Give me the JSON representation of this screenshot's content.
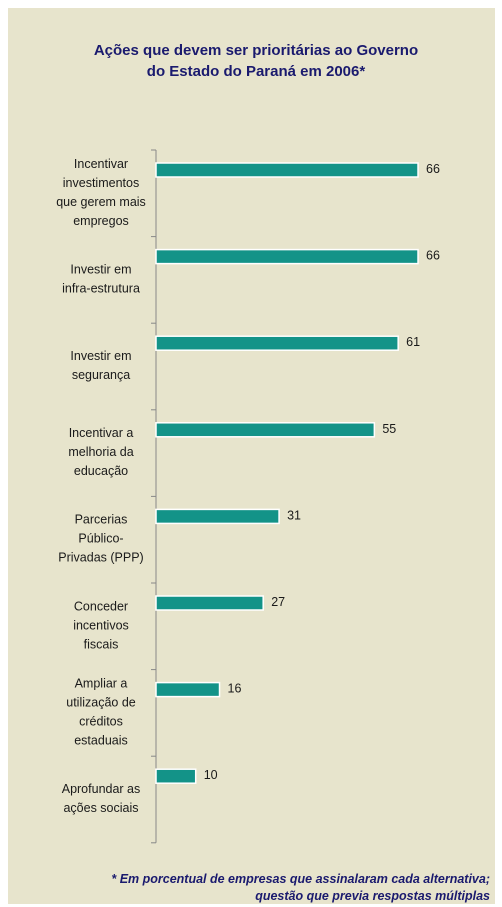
{
  "chart_data": {
    "type": "bar",
    "orientation": "horizontal",
    "title": "Ações que devem ser prioritárias ao Governo\ndo Estado do Paraná em 2006*",
    "categories": [
      "Incentivar\ninvestimentos\nque gerem mais\nempregos",
      "Investir em\ninfra-estrutura",
      "Investir em\nsegurança",
      "Incentivar a\nmelhoria da\neducação",
      "Parcerias\nPúblico-\nPrivadas (PPP)",
      "Conceder\nincentivos\nfiscais",
      "Ampliar a\nutilização de\ncréditos\nestaduais",
      "Aprofundar as\nações sociais"
    ],
    "values": [
      66,
      66,
      61,
      55,
      31,
      27,
      16,
      10
    ],
    "color": "#139388",
    "annotation": "* Em porcentual de empresas que assinalaram cada alternativa;\nquestão que previa respostas múltiplas"
  }
}
